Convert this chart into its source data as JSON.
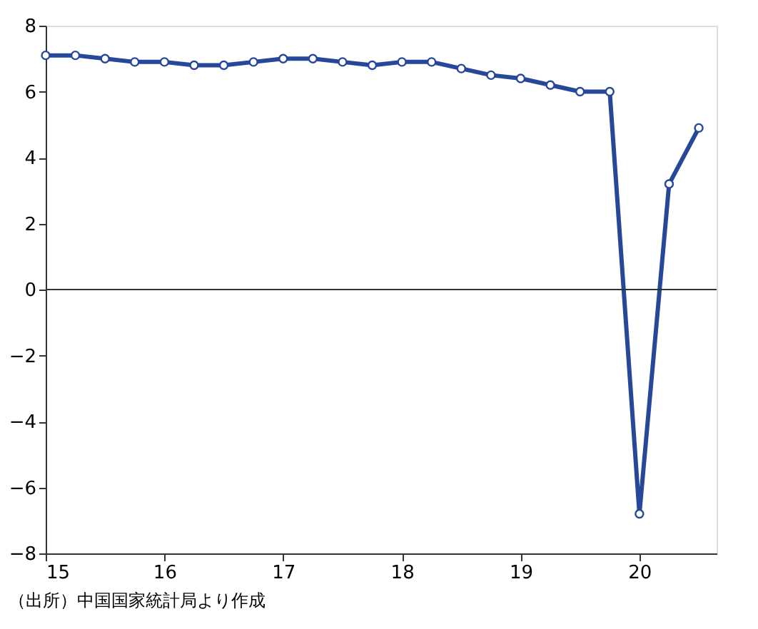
{
  "chart_data": {
    "type": "line",
    "x": [
      15,
      15.25,
      15.5,
      15.75,
      16,
      16.25,
      16.5,
      16.75,
      17,
      17.25,
      17.5,
      17.75,
      18,
      18.25,
      18.5,
      18.75,
      19,
      19.25,
      19.5,
      19.75,
      20,
      20.25,
      20.5
    ],
    "series": [
      {
        "color": "#27479a",
        "values": [
          7.1,
          7.1,
          7.0,
          6.9,
          6.9,
          6.8,
          6.8,
          6.9,
          7.0,
          7.0,
          6.9,
          6.8,
          6.9,
          6.9,
          6.7,
          6.5,
          6.4,
          6.2,
          6.0,
          6.0,
          -6.8,
          3.2,
          4.9
        ]
      }
    ],
    "xlim": [
      15,
      20.65
    ],
    "xticks": [
      15,
      16,
      17,
      18,
      19,
      20
    ],
    "ylim": [
      -8,
      8
    ],
    "yticks": [
      {
        "value": -8,
        "label": "−8"
      },
      {
        "value": -6,
        "label": "−6"
      },
      {
        "value": -4,
        "label": "−4"
      },
      {
        "value": -2,
        "label": "−2"
      },
      0,
      2,
      4,
      6,
      8
    ],
    "ref_lines": [
      {
        "axis": "y",
        "value": 0,
        "color": "#333333"
      }
    ],
    "marker": "circle",
    "line_style": "solid",
    "grid": false,
    "annotations": [
      "（出所）中国国家統計局より作成"
    ]
  }
}
